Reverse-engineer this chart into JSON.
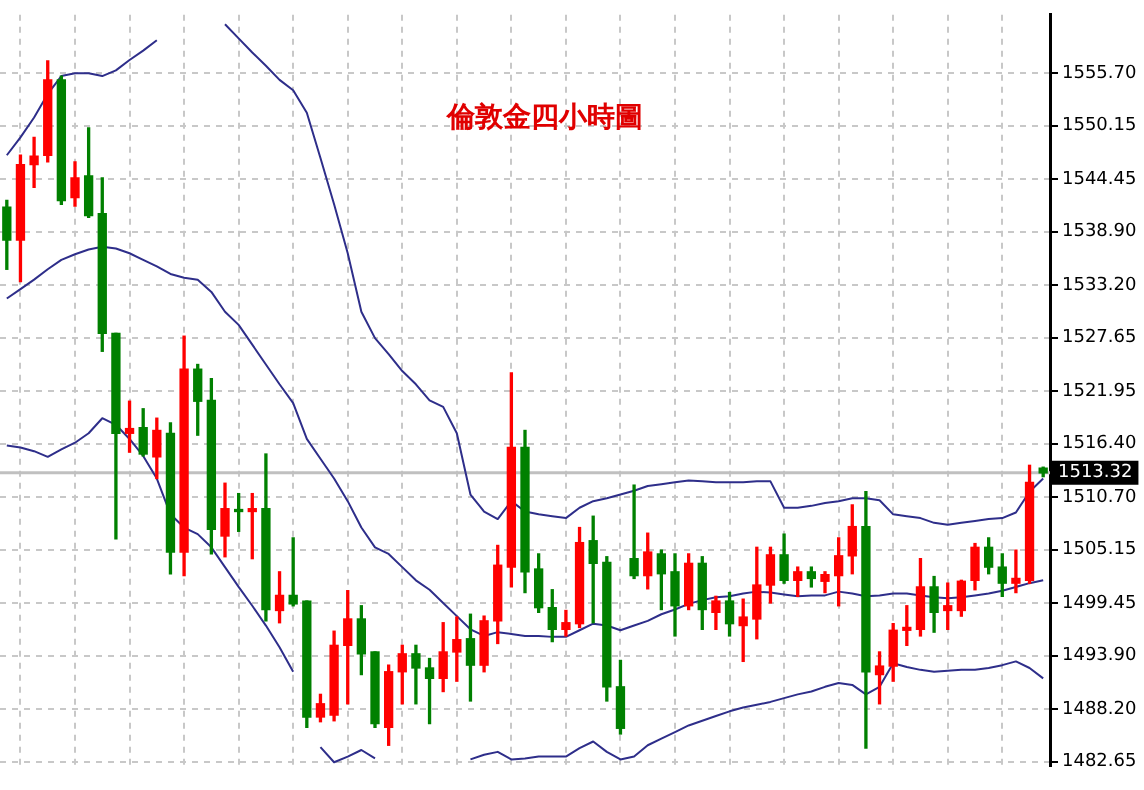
{
  "chart_data": {
    "type": "candlestick",
    "title": "倫敦金四小時圖",
    "categories": [
      null,
      null,
      null,
      null,
      null,
      null,
      null,
      null,
      null,
      null,
      null,
      null,
      null,
      null,
      null,
      null,
      null,
      null,
      null,
      null,
      null,
      null,
      null,
      null,
      null,
      null,
      null,
      null,
      null,
      null,
      null,
      null,
      null,
      null,
      null,
      null,
      null,
      null,
      null,
      null,
      null,
      null,
      null,
      null,
      null,
      null,
      null,
      null,
      null,
      null,
      null,
      null,
      null,
      null,
      null,
      null,
      null,
      null,
      null,
      null,
      null,
      null,
      null,
      null,
      null,
      null,
      null,
      null,
      null,
      null,
      null,
      null,
      null,
      null,
      null,
      null,
      null
    ],
    "ohlc": [
      [
        1541.5,
        1542.2,
        1534.9,
        1538.0
      ],
      [
        1538.0,
        1547.0,
        1533.6,
        1546.0
      ],
      [
        1546.0,
        1548.9,
        1543.6,
        1546.9
      ],
      [
        1547.0,
        1557.0,
        1546.3,
        1555.0
      ],
      [
        1555.0,
        1555.4,
        1541.8,
        1542.2
      ],
      [
        1542.5,
        1546.3,
        1541.6,
        1544.6
      ],
      [
        1544.8,
        1549.9,
        1540.4,
        1540.6
      ],
      [
        1540.8,
        1544.6,
        1526.2,
        1528.1
      ],
      [
        1528.1,
        1528.1,
        1506.3,
        1517.5
      ],
      [
        1517.5,
        1520.9,
        1515.5,
        1518.0
      ],
      [
        1518.1,
        1520.1,
        1515.1,
        1515.3
      ],
      [
        1515.0,
        1519.1,
        1512.7,
        1517.8
      ],
      [
        1517.5,
        1518.6,
        1502.6,
        1504.9
      ],
      [
        1504.9,
        1527.8,
        1502.4,
        1524.3
      ],
      [
        1524.3,
        1524.8,
        1517.3,
        1520.9
      ],
      [
        1521.0,
        1523.3,
        1504.7,
        1507.3
      ],
      [
        1506.6,
        1512.2,
        1504.4,
        1509.5
      ],
      [
        1509.4,
        1511.1,
        1507.1,
        1509.2
      ],
      [
        1509.2,
        1511.1,
        1504.2,
        1509.5
      ],
      [
        1509.5,
        1515.3,
        1497.6,
        1498.8
      ],
      [
        1498.7,
        1502.8,
        1497.4,
        1500.3
      ],
      [
        1500.3,
        1506.4,
        1499.2,
        1499.4
      ],
      [
        1499.7,
        1499.7,
        1486.3,
        1487.4
      ],
      [
        1487.4,
        1489.8,
        1486.9,
        1488.8
      ],
      [
        1487.6,
        1496.5,
        1487.0,
        1495.0
      ],
      [
        1495.0,
        1500.8,
        1488.8,
        1497.8
      ],
      [
        1497.8,
        1499.2,
        1491.9,
        1494.1
      ],
      [
        1494.3,
        1494.3,
        1486.3,
        1486.7
      ],
      [
        1486.3,
        1492.9,
        1484.4,
        1492.2
      ],
      [
        1492.2,
        1495.0,
        1488.8,
        1494.1
      ],
      [
        1494.1,
        1495.0,
        1488.8,
        1492.6
      ],
      [
        1492.6,
        1493.6,
        1486.7,
        1491.5
      ],
      [
        1491.5,
        1497.4,
        1490.1,
        1494.3
      ],
      [
        1494.3,
        1498.0,
        1491.2,
        1495.6
      ],
      [
        1495.7,
        1498.3,
        1489.1,
        1492.9
      ],
      [
        1492.9,
        1498.1,
        1492.2,
        1497.6
      ],
      [
        1497.6,
        1505.6,
        1495.2,
        1503.5
      ],
      [
        1503.3,
        1523.9,
        1501.2,
        1516.0
      ],
      [
        1516.0,
        1517.8,
        1500.6,
        1502.8
      ],
      [
        1503.1,
        1504.7,
        1498.5,
        1499.0
      ],
      [
        1499.0,
        1500.9,
        1495.4,
        1496.7
      ],
      [
        1496.7,
        1498.7,
        1496.0,
        1497.4
      ],
      [
        1497.3,
        1507.5,
        1496.9,
        1505.9
      ],
      [
        1506.1,
        1508.7,
        1497.4,
        1503.7
      ],
      [
        1503.8,
        1504.4,
        1489.1,
        1490.6
      ],
      [
        1490.6,
        1493.4,
        1485.6,
        1486.2
      ],
      [
        1504.2,
        1512.0,
        1502.1,
        1502.4
      ],
      [
        1502.4,
        1506.9,
        1501.0,
        1504.9
      ],
      [
        1504.7,
        1505.1,
        1498.8,
        1502.6
      ],
      [
        1502.8,
        1504.7,
        1496.0,
        1499.2
      ],
      [
        1499.2,
        1504.7,
        1498.8,
        1503.7
      ],
      [
        1503.7,
        1504.4,
        1496.7,
        1498.8
      ],
      [
        1498.5,
        1500.2,
        1496.7,
        1499.7
      ],
      [
        1499.7,
        1500.6,
        1496.0,
        1497.3
      ],
      [
        1497.1,
        1499.9,
        1493.3,
        1498.0
      ],
      [
        1497.8,
        1505.4,
        1495.7,
        1501.4
      ],
      [
        1501.4,
        1505.4,
        1499.5,
        1504.6
      ],
      [
        1504.6,
        1506.8,
        1501.6,
        1501.9
      ],
      [
        1501.9,
        1503.3,
        1500.2,
        1502.8
      ],
      [
        1502.8,
        1503.3,
        1501.2,
        1502.1
      ],
      [
        1501.8,
        1502.8,
        1500.6,
        1502.5
      ],
      [
        1502.4,
        1506.4,
        1499.2,
        1504.5
      ],
      [
        1504.5,
        1509.9,
        1502.6,
        1507.6
      ],
      [
        1507.6,
        1511.3,
        1484.1,
        1492.2
      ],
      [
        1491.9,
        1494.3,
        1488.8,
        1492.8
      ],
      [
        1492.8,
        1497.3,
        1491.2,
        1496.6
      ],
      [
        1496.6,
        1499.2,
        1495.0,
        1496.9
      ],
      [
        1496.7,
        1504.2,
        1496.0,
        1501.2
      ],
      [
        1501.2,
        1502.3,
        1496.4,
        1498.5
      ],
      [
        1498.7,
        1501.6,
        1496.7,
        1499.2
      ],
      [
        1498.7,
        1501.9,
        1498.1,
        1501.8
      ],
      [
        1501.9,
        1505.8,
        1500.9,
        1505.4
      ],
      [
        1505.4,
        1506.4,
        1502.6,
        1503.3
      ],
      [
        1503.3,
        1504.7,
        1500.2,
        1501.6
      ],
      [
        1501.6,
        1505.1,
        1500.6,
        1502.1
      ],
      [
        1501.9,
        1514.1,
        1501.6,
        1512.3
      ],
      [
        1513.8,
        1513.9,
        1512.9,
        1513.3
      ]
    ],
    "colors": [
      "#008000",
      "#ff0000",
      "#ff0000",
      "#ff0000",
      "#008000",
      "#ff0000",
      "#008000",
      "#008000",
      "#008000",
      "#ff0000",
      "#008000",
      "#ff0000",
      "#008000",
      "#ff0000",
      "#008000",
      "#008000",
      "#ff0000",
      "#008000",
      "#ff0000",
      "#008000",
      "#ff0000",
      "#008000",
      "#008000",
      "#ff0000",
      "#ff0000",
      "#ff0000",
      "#008000",
      "#008000",
      "#ff0000",
      "#ff0000",
      "#008000",
      "#008000",
      "#ff0000",
      "#ff0000",
      "#008000",
      "#ff0000",
      "#ff0000",
      "#ff0000",
      "#008000",
      "#008000",
      "#008000",
      "#ff0000",
      "#ff0000",
      "#008000",
      "#008000",
      "#008000",
      "#008000",
      "#ff0000",
      "#008000",
      "#008000",
      "#ff0000",
      "#008000",
      "#ff0000",
      "#008000",
      "#ff0000",
      "#ff0000",
      "#ff0000",
      "#008000",
      "#ff0000",
      "#008000",
      "#ff0000",
      "#ff0000",
      "#ff0000",
      "#008000",
      "#ff0000",
      "#ff0000",
      "#ff0000",
      "#ff0000",
      "#008000",
      "#ff0000",
      "#ff0000",
      "#ff0000",
      "#008000",
      "#008000",
      "#ff0000",
      "#ff0000",
      "#008000"
    ],
    "series": [
      {
        "type": "line",
        "color": "#2e2e8a",
        "values": [
          1547.0,
          1548.9,
          1551.0,
          1553.5,
          1555.4,
          1555.7,
          1555.7,
          1555.4,
          1556.0,
          1557.1,
          1558.1,
          1559.2,
          null,
          null,
          null,
          null,
          1560.9,
          1559.4,
          1557.9,
          1556.5,
          1555.0,
          1553.9,
          1551.5,
          1546.7,
          1541.8,
          1536.6,
          1530.4,
          1527.6,
          1525.9,
          1524.1,
          1522.7,
          1521.0,
          1520.3,
          1517.5,
          1511.0,
          1509.2,
          1508.4,
          1510.3,
          1509.2,
          1508.9,
          1508.7,
          1508.5,
          1509.6,
          1510.3,
          1510.6,
          1511.0,
          1511.4,
          1511.9,
          1512.1,
          1512.3,
          1512.5,
          1512.4,
          1512.3,
          1512.3,
          1512.3,
          1512.4,
          1512.4,
          1509.6,
          1509.6,
          1509.8,
          1510.1,
          1510.3,
          1510.6,
          1510.6,
          1510.4,
          1508.9,
          1508.7,
          1508.5,
          1508.0,
          1507.8,
          1508.0,
          1508.2,
          1508.4,
          1508.5,
          1509.1,
          1511.3,
          1512.7
        ]
      },
      {
        "type": "line",
        "color": "#2e2e8a",
        "values": [
          1531.8,
          1532.8,
          1533.8,
          1534.9,
          1535.9,
          1536.5,
          1537.0,
          1537.3,
          1537.1,
          1536.6,
          1535.9,
          1535.2,
          1534.4,
          1534.0,
          1533.8,
          1532.5,
          1530.4,
          1529.0,
          1526.9,
          1524.8,
          1522.7,
          1520.7,
          1516.9,
          1514.8,
          1512.7,
          1510.3,
          1507.5,
          1505.4,
          1504.7,
          1503.3,
          1501.9,
          1500.9,
          1499.5,
          1498.1,
          1496.7,
          1496.0,
          1496.4,
          1496.2,
          1496.0,
          1496.0,
          1495.9,
          1495.9,
          1496.6,
          1497.3,
          1497.1,
          1496.6,
          1497.1,
          1497.6,
          1498.3,
          1498.8,
          1499.4,
          1499.8,
          1500.1,
          1500.2,
          1500.5,
          1500.7,
          1500.6,
          1500.4,
          1500.2,
          1500.3,
          1500.3,
          1500.7,
          1500.5,
          1500.2,
          1500.3,
          1500.5,
          1500.5,
          1500.3,
          1500.1,
          1500.0,
          1500.1,
          1500.3,
          1500.5,
          1500.8,
          1501.2,
          1501.6,
          1501.9
        ]
      },
      {
        "type": "line",
        "color": "#2e2e8a",
        "values": [
          1516.2,
          1516.0,
          1515.6,
          1515.0,
          1515.8,
          1516.5,
          1517.5,
          1519.1,
          1518.4,
          1516.9,
          1515.1,
          1512.7,
          1508.9,
          1507.5,
          1506.8,
          1505.4,
          1503.3,
          1501.2,
          1499.2,
          1497.1,
          1494.8,
          1492.2,
          null,
          1484.2,
          1482.6,
          1483.2,
          1483.9,
          1483.0,
          null,
          null,
          null,
          null,
          null,
          null,
          1482.9,
          1483.4,
          1483.7,
          1482.9,
          1483.0,
          1483.2,
          1483.2,
          1483.2,
          1484.1,
          1484.8,
          1483.7,
          1482.9,
          1483.2,
          1484.4,
          1485.1,
          1485.8,
          1486.5,
          1487.0,
          1487.5,
          1488.0,
          1488.4,
          1488.7,
          1489.0,
          1489.4,
          1489.8,
          1490.1,
          1490.6,
          1491.0,
          1490.8,
          1489.8,
          1490.6,
          1493.1,
          1492.7,
          1492.4,
          1492.2,
          1492.3,
          1492.4,
          1492.4,
          1492.6,
          1492.9,
          1493.3,
          1492.6,
          1491.5
        ]
      }
    ],
    "ylim": [
      1482.2,
      1561.9
    ],
    "yticks": [
      1482.65,
      {
        "value": 1488.2,
        "label": "1488.20"
      },
      {
        "value": 1493.9,
        "label": "1493.90"
      },
      1499.45,
      {
        "value": 1505.15,
        "label": "1505.15"
      },
      {
        "value": 1510.7,
        "label": "1510.70"
      },
      {
        "value": 1516.4,
        "label": "1516.40"
      },
      1521.95,
      1527.65,
      {
        "value": 1533.2,
        "label": "1533.20"
      },
      {
        "value": 1538.9,
        "label": "1538.90"
      },
      1544.45,
      1550.15,
      {
        "value": 1555.7,
        "label": "1555.70"
      }
    ],
    "grid": true,
    "tick_labels": "y",
    "ref_lines": [
      {
        "axis": "y",
        "value": 1513.32,
        "label": "1513.32",
        "color": "#c0c0c0"
      }
    ]
  }
}
